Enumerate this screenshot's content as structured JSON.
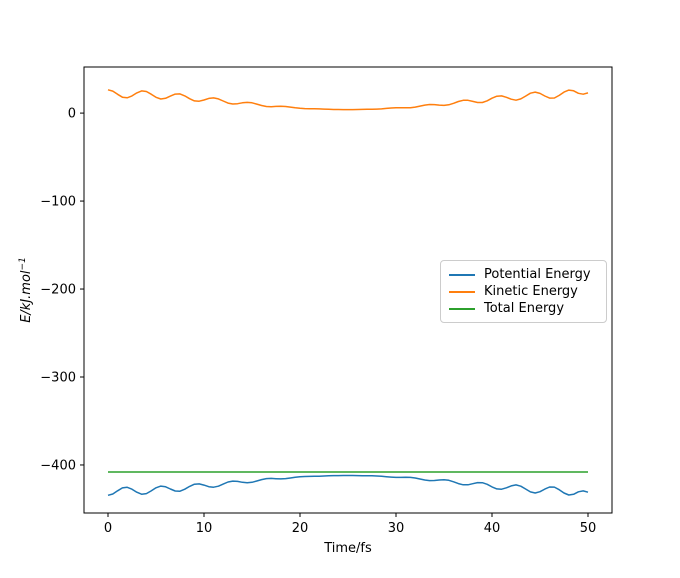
{
  "figure": {
    "xlabel": "Time/fs",
    "ylabel_base": "E/kJ.mol",
    "ylabel_sup": "−1"
  },
  "legend": {
    "items": [
      {
        "label": "Potential Energy",
        "color": "#1f77b4"
      },
      {
        "label": "Kinetic Energy",
        "color": "#ff7f0e"
      },
      {
        "label": "Total Energy",
        "color": "#2ca02c"
      }
    ]
  },
  "chart_data": {
    "type": "line",
    "title": "",
    "xlabel": "Time/fs",
    "ylabel": "E/kJ.mol^-1",
    "grid": false,
    "legend_position": "center right",
    "xlim": [
      -2.5,
      52.5
    ],
    "ylim": [
      -454.6,
      52.4
    ],
    "x_ticks": [
      0,
      10,
      20,
      30,
      40,
      50
    ],
    "x_tick_labels": [
      "0",
      "10",
      "20",
      "30",
      "40",
      "50"
    ],
    "y_ticks": [
      0,
      -100,
      -200,
      -300,
      -400
    ],
    "y_tick_labels": [
      "0",
      "−100",
      "−200",
      "−300",
      "−400"
    ],
    "line_width": 1.5,
    "time_fs": [
      0,
      0.5,
      1,
      1.5,
      2,
      2.5,
      3,
      3.5,
      4,
      4.5,
      5,
      5.5,
      6,
      6.5,
      7,
      7.5,
      8,
      8.5,
      9,
      9.5,
      10,
      10.5,
      11,
      11.5,
      12,
      12.5,
      13,
      13.5,
      14,
      14.5,
      15,
      15.5,
      16,
      16.5,
      17,
      17.5,
      18,
      18.5,
      19,
      19.5,
      20,
      20.5,
      21,
      21.5,
      22,
      22.5,
      23,
      23.5,
      24,
      24.5,
      25,
      25.5,
      26,
      26.5,
      27,
      27.5,
      28,
      28.5,
      29,
      29.5,
      30,
      30.5,
      31,
      31.5,
      32,
      32.5,
      33,
      33.5,
      34,
      34.5,
      35,
      35.5,
      36,
      36.5,
      37,
      37.5,
      38,
      38.5,
      39,
      39.5,
      40,
      40.5,
      41,
      41.5,
      42,
      42.5,
      43,
      43.5,
      44,
      44.5,
      45,
      45.5,
      46,
      46.5,
      47,
      47.5,
      48,
      48.5,
      49,
      49.5,
      50
    ],
    "series": [
      {
        "name": "Potential Energy",
        "color": "#1f77b4",
        "values": [
          -434.5,
          -433.0,
          -429.4,
          -426.1,
          -425.4,
          -427.6,
          -431.0,
          -433.2,
          -432.6,
          -429.5,
          -425.9,
          -424.0,
          -424.8,
          -427.3,
          -429.6,
          -429.8,
          -427.6,
          -424.4,
          -421.9,
          -421.5,
          -422.9,
          -424.7,
          -425.3,
          -424.1,
          -421.7,
          -419.4,
          -418.3,
          -418.7,
          -419.7,
          -420.2,
          -419.7,
          -418.2,
          -416.6,
          -415.5,
          -415.3,
          -415.6,
          -415.8,
          -415.5,
          -414.8,
          -414.0,
          -413.4,
          -413.1,
          -413.0,
          -412.9,
          -412.8,
          -412.5,
          -412.3,
          -412.1,
          -412.1,
          -412.0,
          -412.0,
          -412.0,
          -412.1,
          -412.2,
          -412.3,
          -412.3,
          -412.5,
          -412.8,
          -413.3,
          -413.8,
          -414.1,
          -414.1,
          -414.0,
          -414.1,
          -414.8,
          -415.9,
          -417.1,
          -417.8,
          -417.7,
          -417.1,
          -416.7,
          -417.4,
          -419.1,
          -421.2,
          -422.5,
          -422.5,
          -421.3,
          -420.0,
          -420.1,
          -422.0,
          -424.9,
          -427.2,
          -427.6,
          -426.0,
          -423.8,
          -422.7,
          -424.1,
          -427.3,
          -430.6,
          -431.9,
          -430.4,
          -427.4,
          -425.1,
          -425.2,
          -428.1,
          -431.9,
          -434.1,
          -433.3,
          -430.5,
          -429.5,
          -431.0
        ]
      },
      {
        "name": "Kinetic Energy",
        "color": "#ff7f0e",
        "values": [
          26.5,
          25.0,
          21.4,
          18.1,
          17.4,
          19.6,
          23.0,
          25.2,
          24.6,
          21.5,
          17.9,
          16.0,
          16.8,
          19.3,
          21.6,
          21.8,
          19.6,
          16.4,
          13.9,
          13.5,
          14.9,
          16.7,
          17.3,
          16.1,
          13.7,
          11.4,
          10.3,
          10.7,
          11.7,
          12.2,
          11.7,
          10.2,
          8.6,
          7.5,
          7.3,
          7.6,
          7.8,
          7.5,
          6.8,
          6.0,
          5.4,
          5.1,
          5.0,
          4.9,
          4.8,
          4.5,
          4.3,
          4.1,
          4.1,
          4.0,
          4.0,
          4.0,
          4.1,
          4.2,
          4.3,
          4.3,
          4.5,
          4.8,
          5.3,
          5.8,
          6.1,
          6.1,
          6.0,
          6.1,
          6.8,
          7.9,
          9.1,
          9.8,
          9.7,
          9.1,
          8.7,
          9.4,
          11.1,
          13.2,
          14.5,
          14.5,
          13.3,
          12.0,
          12.1,
          14.0,
          16.9,
          19.2,
          19.6,
          18.0,
          15.8,
          14.7,
          16.1,
          19.3,
          22.6,
          23.9,
          22.4,
          19.4,
          17.1,
          17.2,
          20.1,
          23.9,
          26.1,
          25.3,
          22.5,
          21.5,
          23.0
        ]
      },
      {
        "name": "Total Energy",
        "color": "#2ca02c",
        "x": [
          0,
          50
        ],
        "values": [
          -408,
          -408
        ]
      }
    ]
  }
}
